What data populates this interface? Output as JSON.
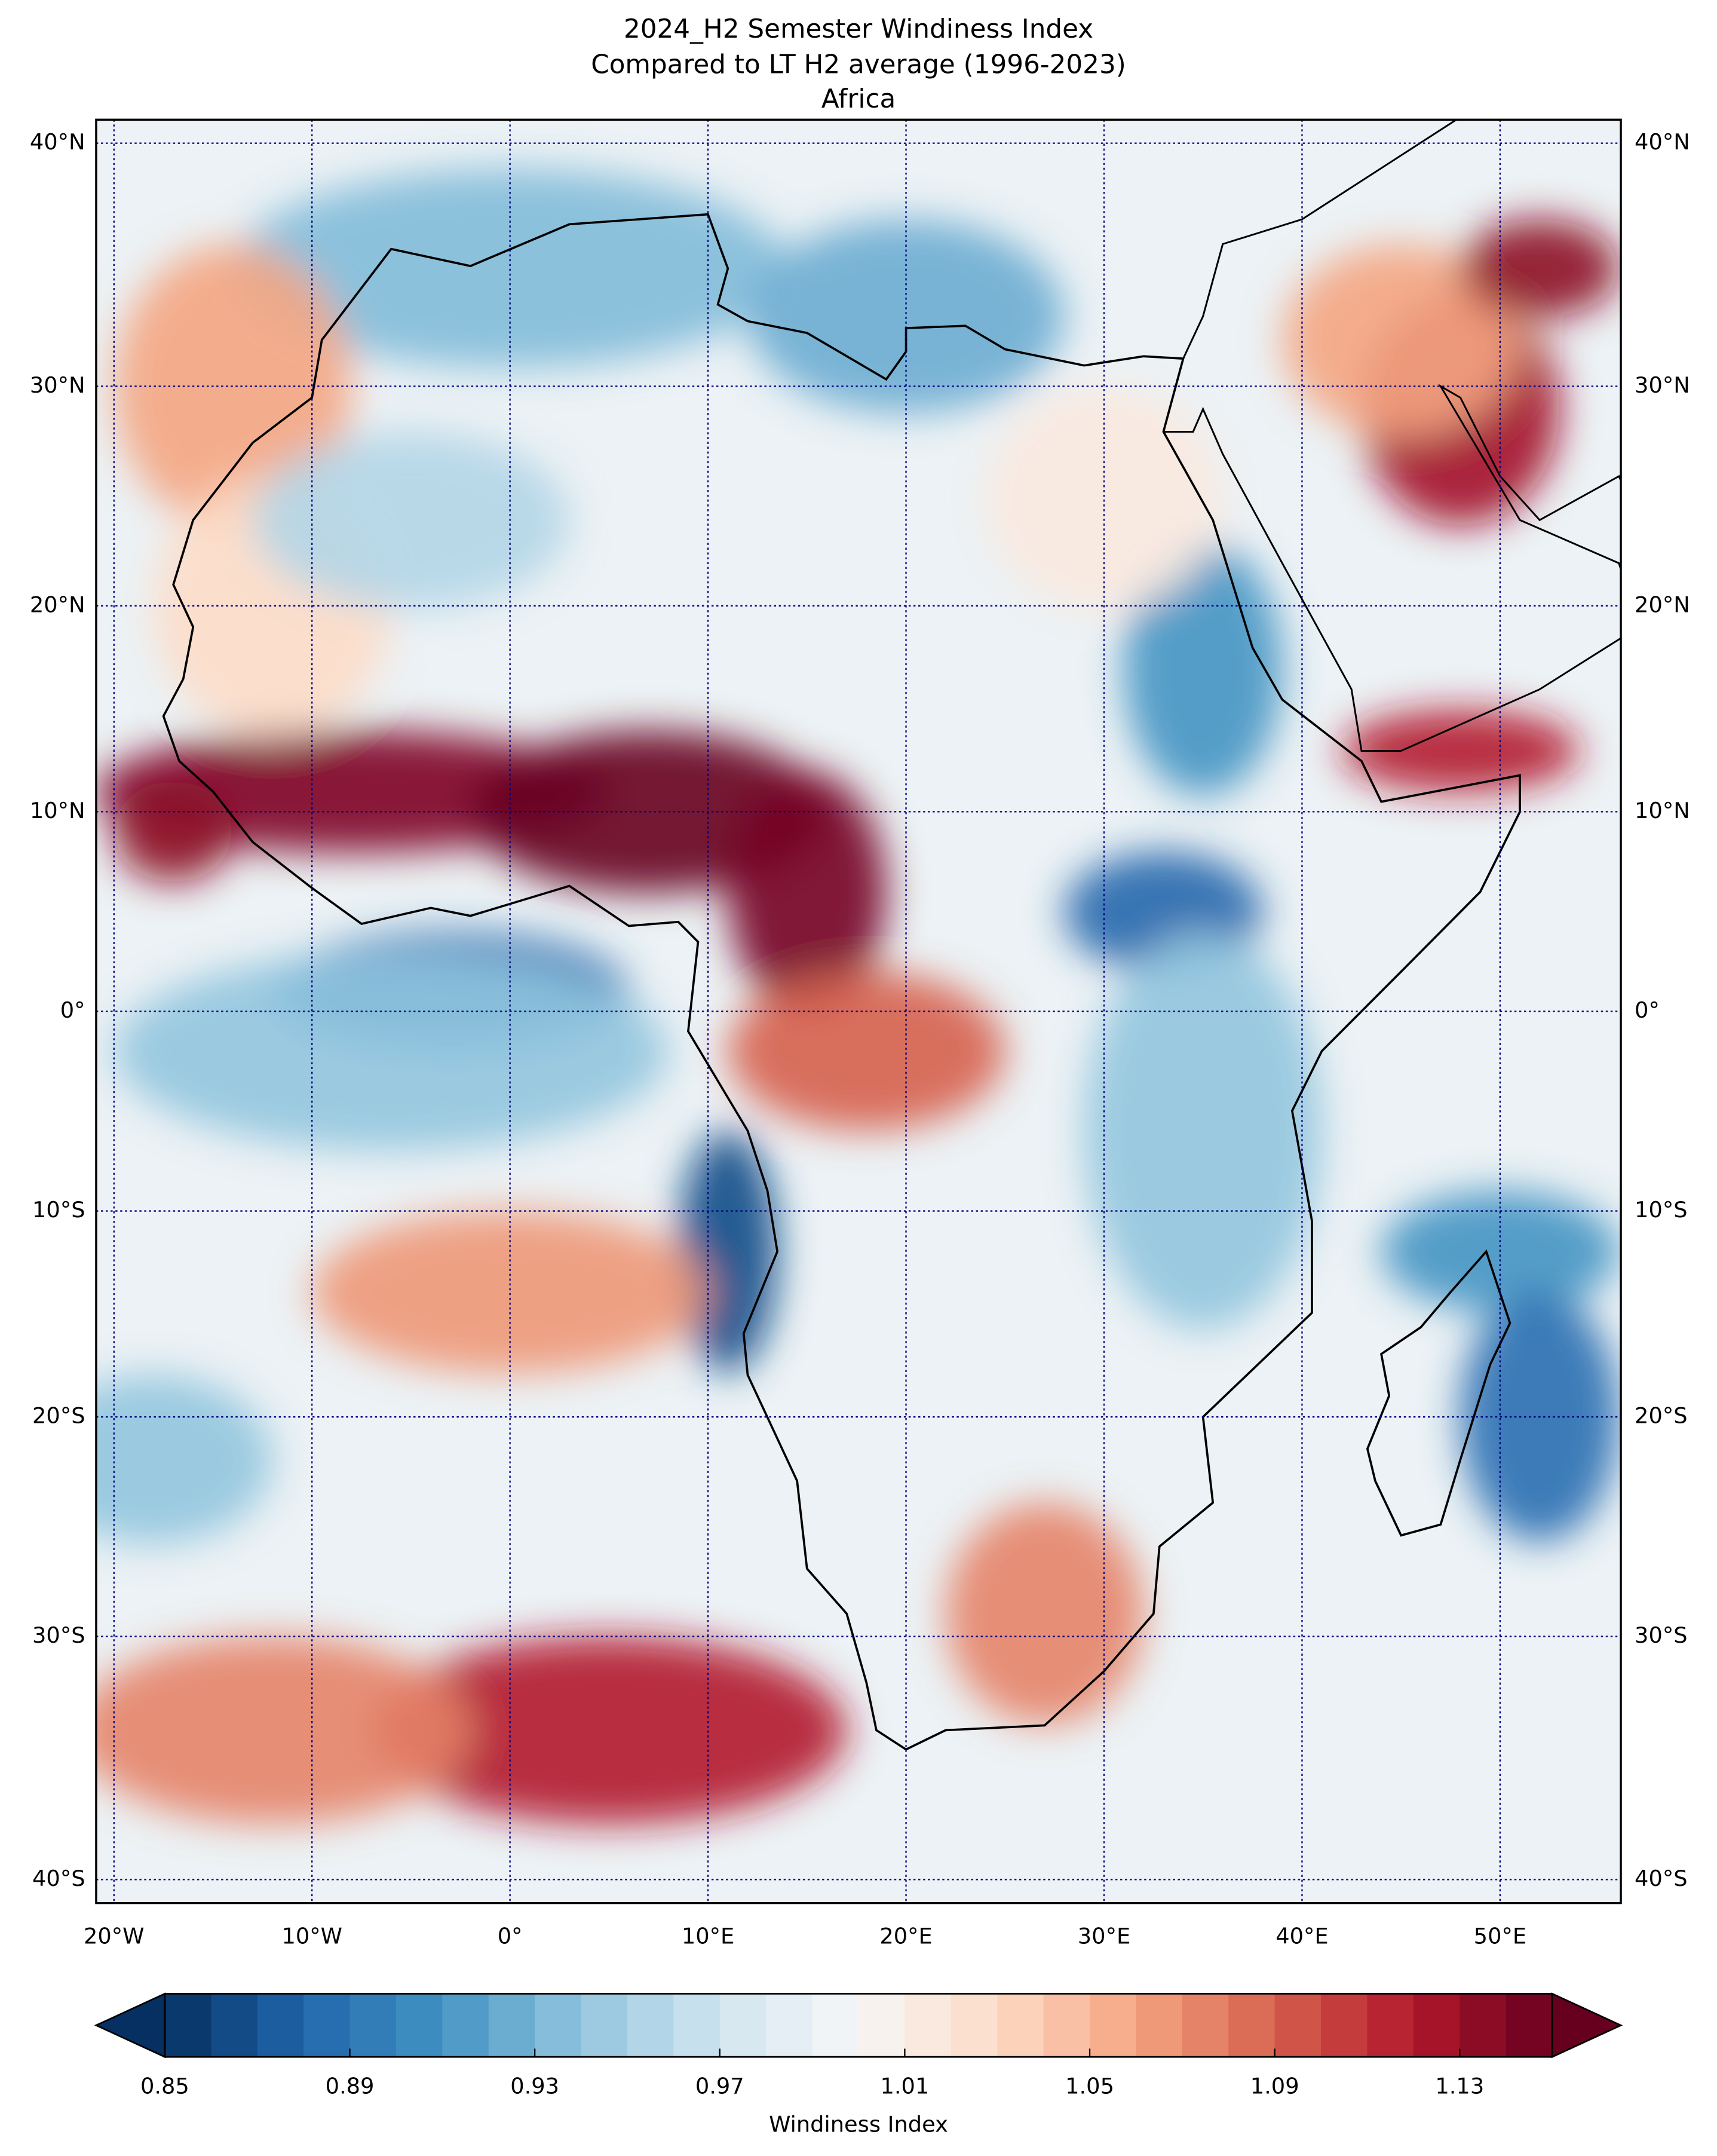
{
  "chart_data": {
    "type": "map",
    "title": "2024_H2 Semester Windiness Index",
    "subtitle": "Compared to LT H2 average (1996-2023)",
    "region": "Africa",
    "projection": "mercator",
    "xlim": [
      -20.9,
      56.1
    ],
    "ylim": [
      -40.9,
      40.9
    ],
    "xticks": [
      {
        "value": -20,
        "label": "20°W"
      },
      {
        "value": -10,
        "label": "10°W"
      },
      {
        "value": 0,
        "label": "0°"
      },
      {
        "value": 10,
        "label": "10°E"
      },
      {
        "value": 20,
        "label": "20°E"
      },
      {
        "value": 30,
        "label": "30°E"
      },
      {
        "value": 40,
        "label": "40°E"
      },
      {
        "value": 50,
        "label": "50°E"
      }
    ],
    "yticks": [
      {
        "value": 40,
        "label": "40°N"
      },
      {
        "value": 30,
        "label": "30°N"
      },
      {
        "value": 20,
        "label": "20°N"
      },
      {
        "value": 10,
        "label": "10°N"
      },
      {
        "value": 0,
        "label": "0°"
      },
      {
        "value": -10,
        "label": "10°S"
      },
      {
        "value": -20,
        "label": "20°S"
      },
      {
        "value": -30,
        "label": "30°S"
      },
      {
        "value": -40,
        "label": "40°S"
      }
    ],
    "grid": true,
    "grid_color": "#00007f",
    "colorbar": {
      "label": "Windiness Index",
      "lim": [
        0.85,
        1.15
      ],
      "ticks": [
        0.85,
        0.89,
        0.93,
        0.97,
        1.01,
        1.05,
        1.09,
        1.13
      ],
      "step": 0.01,
      "extend": "both",
      "cmap": [
        "#053061",
        "#2166ac",
        "#4393c3",
        "#92c5de",
        "#d1e5f0",
        "#f7f7f7",
        "#fddbc7",
        "#f4a582",
        "#d6604d",
        "#b2182b",
        "#67001f"
      ]
    }
  }
}
